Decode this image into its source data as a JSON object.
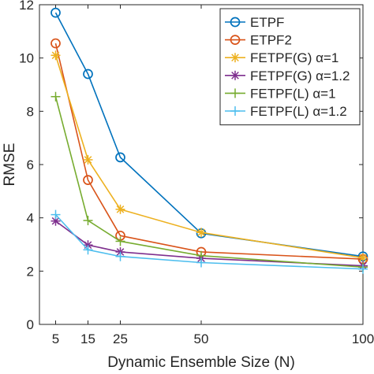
{
  "chart_data": {
    "type": "line",
    "xlabel": "Dynamic Ensemble Size (N)",
    "ylabel": "RMSE",
    "x": [
      5,
      15,
      25,
      50,
      100
    ],
    "xlim": [
      0,
      100
    ],
    "ylim": [
      0,
      12
    ],
    "xticks": [
      5,
      15,
      25,
      50,
      100
    ],
    "yticks": [
      0,
      2,
      4,
      6,
      8,
      10,
      12
    ],
    "legend_position": "top-right",
    "grid": false,
    "series": [
      {
        "name": "ETPF",
        "marker": "circle",
        "color": "#0072BD",
        "values": [
          11.7,
          9.4,
          6.27,
          3.42,
          2.55
        ]
      },
      {
        "name": "ETPF2",
        "marker": "circle",
        "color": "#D95319",
        "values": [
          10.55,
          5.42,
          3.33,
          2.72,
          2.45
        ]
      },
      {
        "name": "FETPF(G) α=1",
        "marker": "asterisk",
        "color": "#EDB120",
        "values": [
          10.1,
          6.18,
          4.32,
          3.45,
          2.5
        ]
      },
      {
        "name": "FETPF(G) α=1.2",
        "marker": "asterisk",
        "color": "#7E2F8E",
        "values": [
          3.88,
          2.98,
          2.72,
          2.48,
          2.2
        ]
      },
      {
        "name": "FETPF(L) α=1",
        "marker": "plus",
        "color": "#77AC30",
        "values": [
          8.55,
          3.9,
          3.12,
          2.58,
          2.15
        ]
      },
      {
        "name": "FETPF(L) α=1.2",
        "marker": "plus",
        "color": "#4DBEEE",
        "values": [
          4.12,
          2.8,
          2.55,
          2.32,
          2.08
        ]
      }
    ]
  }
}
